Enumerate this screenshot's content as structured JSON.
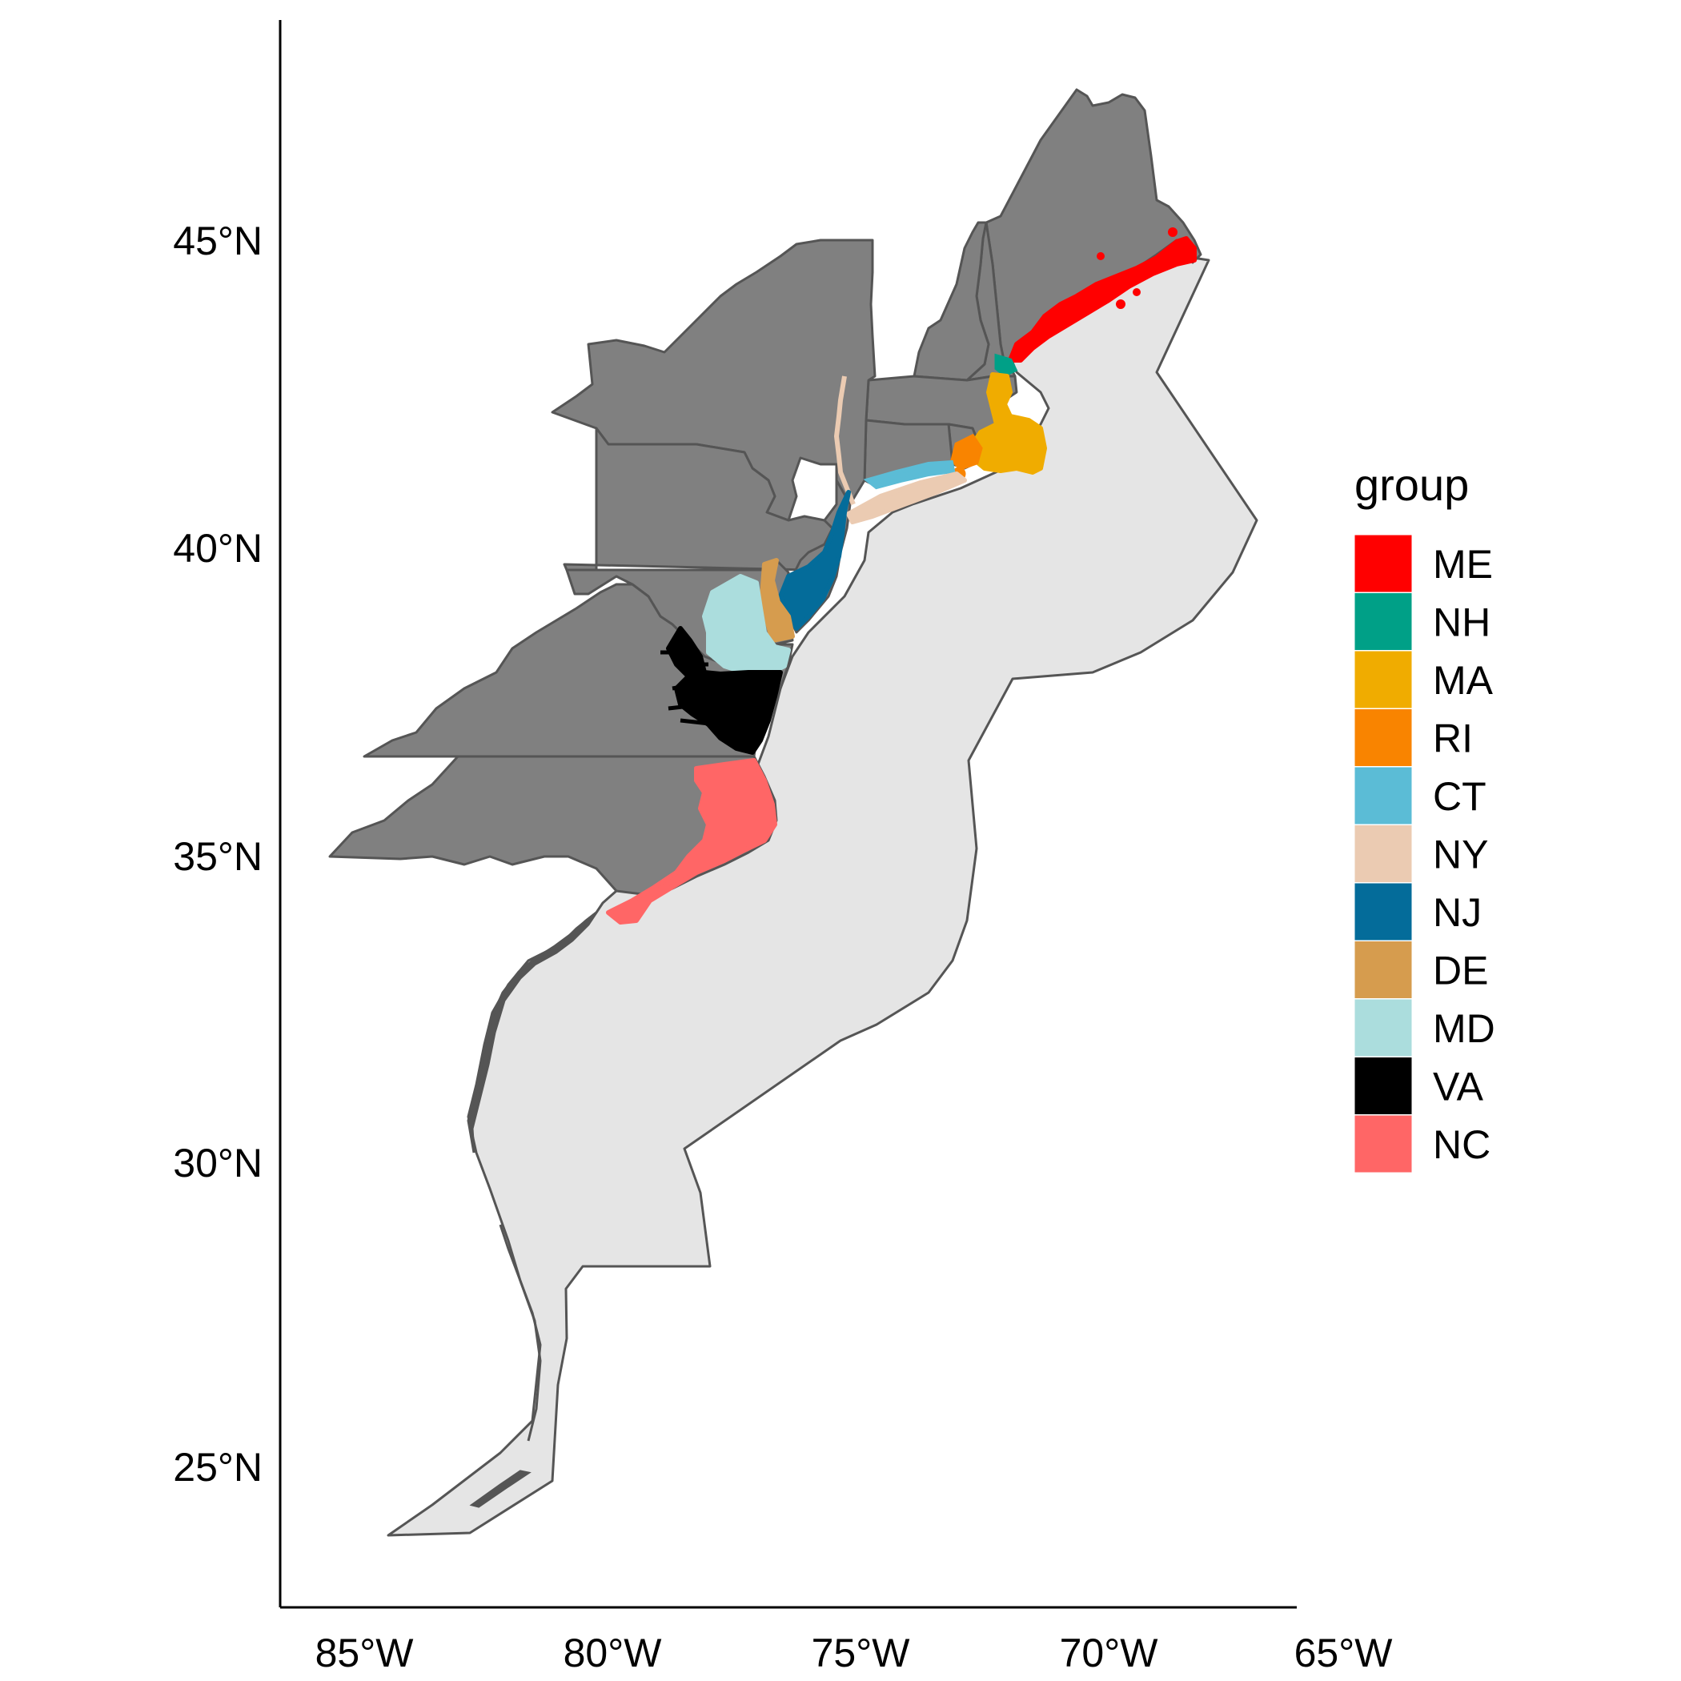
{
  "map": {
    "y_ticks": [
      "45°N",
      "40°N",
      "35°N",
      "30°N",
      "25°N"
    ],
    "x_ticks": [
      "85°W",
      "80°W",
      "75°W",
      "70°W",
      "65°W"
    ],
    "land_color": "#808080",
    "ocean_region_color": "#e5e5e5",
    "outline_color": "#555555"
  },
  "legend": {
    "title": "group",
    "items": [
      {
        "label": "ME",
        "color": "#ff0000"
      },
      {
        "label": "NH",
        "color": "#00a087"
      },
      {
        "label": "MA",
        "color": "#f0ac00"
      },
      {
        "label": "RI",
        "color": "#f98400"
      },
      {
        "label": "CT",
        "color": "#5bbcd6"
      },
      {
        "label": "NY",
        "color": "#ebcbb2"
      },
      {
        "label": "NJ",
        "color": "#046c9a"
      },
      {
        "label": "DE",
        "color": "#d69c4e"
      },
      {
        "label": "MD",
        "color": "#abdddd"
      },
      {
        "label": "VA",
        "color": "#000000"
      },
      {
        "label": "NC",
        "color": "#ff6666"
      }
    ]
  }
}
